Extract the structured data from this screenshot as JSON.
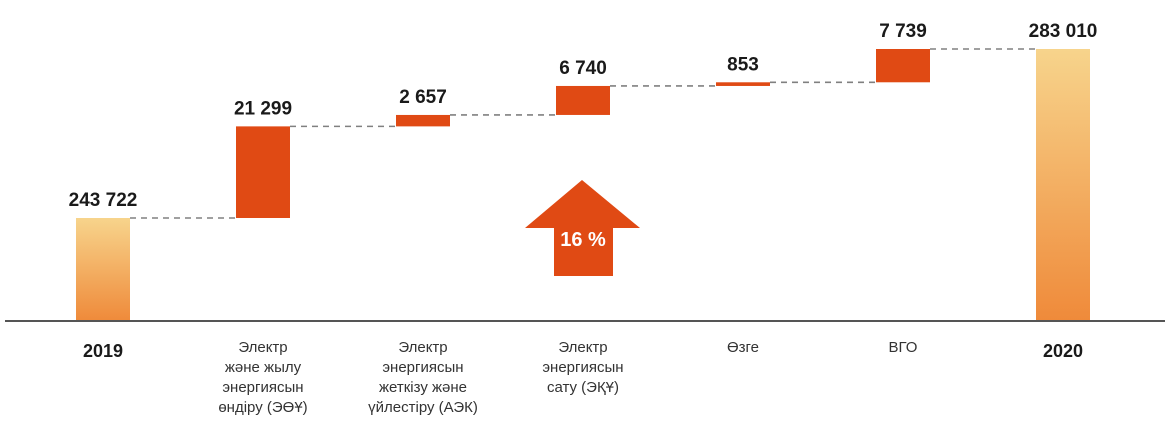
{
  "chart_data": {
    "type": "waterfall",
    "categories": [
      "2019",
      "Электр\nжәне жылу\nэнергиясын\nөндіру (ЭӨҰ)",
      "Электр\nэнергиясын\nжеткізу және\nүйлестіру (АЭК)",
      "Электр\nэнергиясын\nсату (ЭҚҰ)",
      "Өзге",
      "ВГО",
      "2020"
    ],
    "values": [
      243722,
      21299,
      2657,
      6740,
      853,
      7739,
      283010
    ],
    "value_labels": [
      "243 722",
      "21 299",
      "2 657",
      "6 740",
      "853",
      "7 739",
      "283 010"
    ],
    "kinds": [
      "total",
      "increase",
      "increase",
      "increase",
      "increase",
      "increase",
      "total"
    ],
    "annotation": "16 %",
    "colors": {
      "increase": "#e04a14",
      "total_top": "#f7d48c",
      "total_bottom": "#ef8a3a",
      "connector": "#808080",
      "baseline": "#555555"
    }
  }
}
